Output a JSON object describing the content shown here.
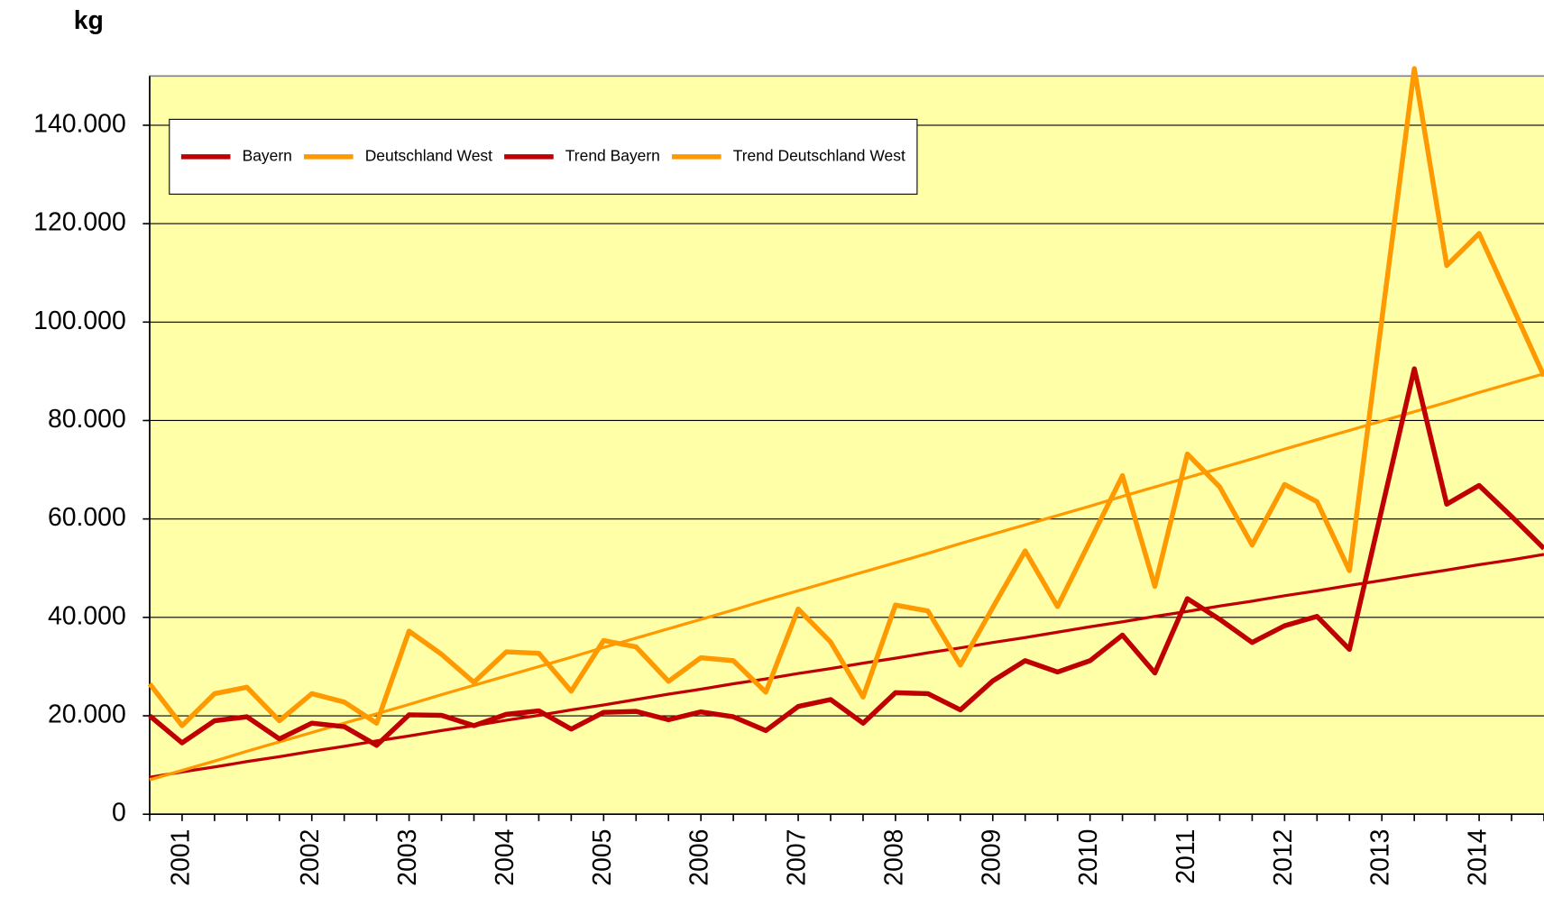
{
  "chart_data": {
    "type": "line",
    "y_label": "kg",
    "categories": [
      null,
      "2001",
      null,
      null,
      null,
      "2002",
      null,
      null,
      "2003",
      null,
      null,
      "2004",
      null,
      null,
      "2005",
      null,
      null,
      "2006",
      null,
      null,
      "2007",
      null,
      null,
      "2008",
      null,
      null,
      "2009",
      null,
      null,
      "2010",
      null,
      null,
      "2011",
      null,
      null,
      "2012",
      null,
      null,
      "2013",
      null,
      null,
      "2014",
      null,
      null
    ],
    "series": [
      {
        "name": "Bayern",
        "color": "#c00000",
        "line_width": 5,
        "values": [
          20000,
          14500,
          19000,
          19800,
          15300,
          18500,
          17800,
          14000,
          20200,
          20100,
          18000,
          20300,
          21000,
          17300,
          20700,
          20900,
          19200,
          20800,
          19800,
          17000,
          21900,
          23300,
          18500,
          24700,
          24500,
          21200,
          27100,
          31200,
          28900,
          31200,
          36400,
          28700,
          43800,
          39600,
          34900,
          38300,
          40200,
          33500,
          62000,
          90500,
          63000,
          66800,
          60500,
          54000
        ]
      },
      {
        "name": "Deutschland West",
        "color": "#ff9900",
        "line_width": 5,
        "values": [
          26500,
          18000,
          24500,
          25800,
          19000,
          24500,
          22800,
          18500,
          37200,
          32500,
          26800,
          33000,
          32700,
          25000,
          35300,
          34000,
          27000,
          31800,
          31200,
          24800,
          41700,
          35000,
          23800,
          42500,
          41300,
          30300,
          42000,
          53500,
          42200,
          55500,
          68800,
          46300,
          73200,
          66500,
          54700,
          67000,
          63500,
          49500,
          100500,
          151500,
          111500,
          118000,
          103500,
          89000
        ]
      },
      {
        "name": "Trend Bayern",
        "color": "#c00000",
        "line_width": 3,
        "values": [
          7500,
          8600,
          9600,
          10700,
          11700,
          12800,
          13800,
          14900,
          15900,
          17000,
          18000,
          19100,
          20100,
          21200,
          22200,
          23300,
          24400,
          25400,
          26500,
          27500,
          28600,
          29600,
          30700,
          31700,
          32800,
          33800,
          34900,
          35900,
          37000,
          38100,
          39100,
          40200,
          41200,
          42300,
          43300,
          44400,
          45400,
          46500,
          47500,
          48600,
          49600,
          50700,
          51700,
          52800
        ]
      },
      {
        "name": "Trend Deutschland West",
        "color": "#ff9900",
        "line_width": 3,
        "values": [
          7000,
          8900,
          10800,
          12800,
          14700,
          16600,
          18500,
          20400,
          22300,
          24300,
          26200,
          28100,
          30000,
          31900,
          33900,
          35800,
          37700,
          39600,
          41500,
          43500,
          45400,
          47300,
          49200,
          51100,
          53000,
          55000,
          56900,
          58800,
          60700,
          62600,
          64600,
          66500,
          68400,
          70300,
          72200,
          74200,
          76100,
          78000,
          79900,
          81800,
          83700,
          85700,
          87600,
          89500
        ]
      }
    ],
    "ylim": [
      0,
      150000
    ],
    "yticks": [
      0,
      {
        "value": 20000,
        "label": "20.000"
      },
      {
        "value": 40000,
        "label": "40.000"
      },
      {
        "value": 60000,
        "label": "60.000"
      },
      {
        "value": 80000,
        "label": "80.000"
      },
      {
        "value": 100000,
        "label": "100.000"
      },
      {
        "value": 120000,
        "label": "120.000"
      },
      {
        "value": 140000,
        "label": "140.000"
      }
    ],
    "grid": true,
    "legend": "top-left",
    "background": "#ffffa8"
  }
}
